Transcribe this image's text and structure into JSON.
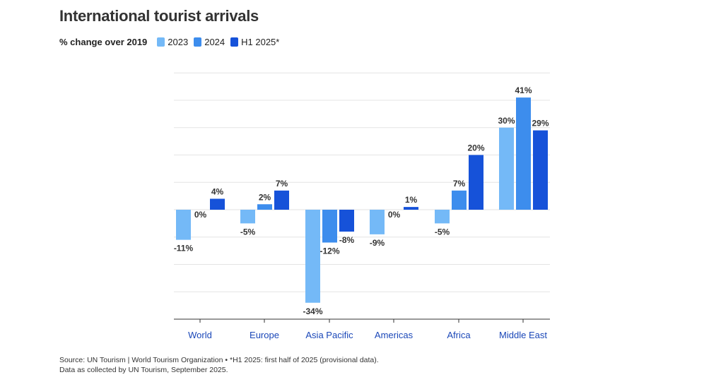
{
  "chart_data": {
    "type": "bar",
    "title": "International tourist arrivals",
    "legend_title": "% change over 2019",
    "categories": [
      "World",
      "Europe",
      "Asia Pacific",
      "Americas",
      "Africa",
      "Middle East"
    ],
    "series": [
      {
        "name": "2023",
        "color": "#74b9f7",
        "values": [
          -11,
          -5,
          -34,
          -9,
          -5,
          30
        ],
        "labels": [
          "-11%",
          "-5%",
          "-34%",
          "-9%",
          "-5%",
          "30%"
        ]
      },
      {
        "name": "2024",
        "color": "#3d8ded",
        "values": [
          0,
          2,
          -12,
          0,
          7,
          41
        ],
        "labels": [
          "0%",
          "2%",
          "-12%",
          "0%",
          "7%",
          "41%"
        ]
      },
      {
        "name": "H1 2025*",
        "color": "#1652d9",
        "values": [
          4,
          7,
          -8,
          1,
          20,
          29
        ],
        "labels": [
          "4%",
          "7%",
          "-8%",
          "1%",
          "20%",
          "29%"
        ]
      }
    ],
    "ylim": [
      -40,
      50
    ],
    "gridlines": true,
    "xlabel": "",
    "ylabel": ""
  },
  "footer": {
    "line1": "Source: UN Tourism | World Tourism Organization • *H1 2025: first half of 2025 (provisional data).",
    "line2": "Data as collected by UN Tourism, September 2025."
  }
}
